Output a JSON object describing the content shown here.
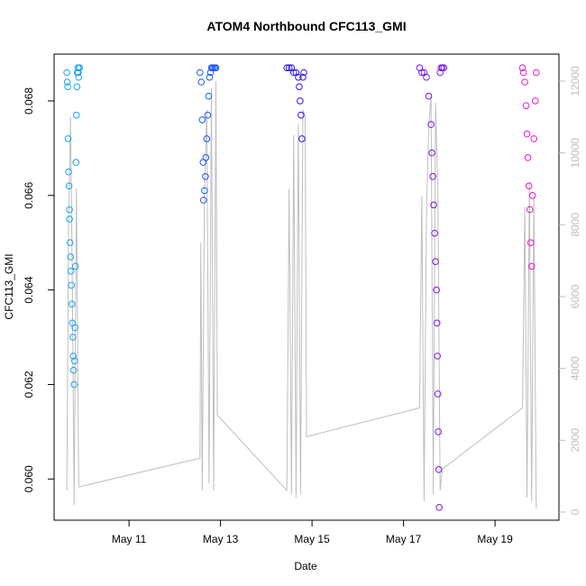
{
  "chart_data": {
    "type": "scatter",
    "title": "ATOM4 Northbound CFC113_GMI",
    "xlabel": "Date",
    "ylabel": "CFC113_GMI",
    "x_ticks": [
      "May 11",
      "May 13",
      "May 15",
      "May 17",
      "May 19"
    ],
    "y_ticks": [
      "0.060",
      "0.062",
      "0.064",
      "0.066",
      "0.068"
    ],
    "y2_ticks": [
      "0",
      "2000",
      "4000",
      "6000",
      "8000",
      "10000",
      "12000"
    ],
    "xlim_days": [
      9.5,
      20.2
    ],
    "ylim": [
      0.0593,
      0.0688
    ],
    "y2lim": [
      0,
      12500
    ],
    "colors": {
      "altitude_trace": "#bebebe",
      "flight_1": "#1aa3ef",
      "flight_2": "#1a58ef",
      "flight_3": "#2a17e6",
      "flight_4": "#7a17e6",
      "flight_5": "#ee17c4"
    },
    "series": [
      {
        "color": "#1aa3ef",
        "x": [
          9.64,
          9.65,
          9.66,
          9.67,
          9.68,
          9.69,
          9.7,
          9.7,
          9.71,
          9.72,
          9.73,
          9.74,
          9.75,
          9.76,
          9.77,
          9.78,
          9.79,
          9.8,
          9.81,
          9.82,
          9.83,
          9.84,
          9.85,
          9.86,
          9.87,
          9.88,
          9.89,
          9.9,
          9.91,
          9.92
        ],
        "y": [
          0.0686,
          0.0684,
          0.0683,
          0.0672,
          0.0665,
          0.0662,
          0.0657,
          0.0655,
          0.065,
          0.0647,
          0.0644,
          0.0641,
          0.0637,
          0.0633,
          0.063,
          0.0626,
          0.0623,
          0.062,
          0.0625,
          0.0632,
          0.0645,
          0.0667,
          0.0677,
          0.0683,
          0.0686,
          0.0687,
          0.0686,
          0.0685,
          0.0687,
          0.0687
        ]
      },
      {
        "color": "#1a58ef",
        "x": [
          12.55,
          12.58,
          12.6,
          12.62,
          12.63,
          12.65,
          12.67,
          12.68,
          12.7,
          12.72,
          12.74,
          12.76,
          12.78,
          12.8,
          12.82,
          12.85,
          12.88,
          12.9
        ],
        "y": [
          0.0686,
          0.0684,
          0.0676,
          0.0667,
          0.0659,
          0.0661,
          0.0664,
          0.0668,
          0.0672,
          0.0677,
          0.0681,
          0.0685,
          0.0686,
          0.0687,
          0.0687,
          0.0687,
          0.0687,
          0.0687
        ]
      },
      {
        "color": "#2a17e6",
        "x": [
          14.45,
          14.5,
          14.55,
          14.6,
          14.65,
          14.7,
          14.72,
          14.74,
          14.76,
          14.78,
          14.8,
          14.82
        ],
        "y": [
          0.0687,
          0.0687,
          0.0687,
          0.0686,
          0.0686,
          0.0685,
          0.0683,
          0.068,
          0.0677,
          0.0672,
          0.0685,
          0.0686
        ]
      },
      {
        "color": "#7a17e6",
        "x": [
          17.35,
          17.4,
          17.45,
          17.5,
          17.55,
          17.6,
          17.62,
          17.64,
          17.66,
          17.68,
          17.7,
          17.72,
          17.73,
          17.74,
          17.75,
          17.76,
          17.77,
          17.78,
          17.8,
          17.82,
          17.85,
          17.88
        ],
        "y": [
          0.0687,
          0.0686,
          0.0686,
          0.0685,
          0.0681,
          0.0675,
          0.0669,
          0.0664,
          0.0658,
          0.0652,
          0.0646,
          0.064,
          0.0633,
          0.0626,
          0.0618,
          0.061,
          0.0602,
          0.0594,
          0.0686,
          0.0687,
          0.0687,
          0.0687
        ]
      },
      {
        "color": "#ee17c4",
        "x": [
          19.6,
          19.62,
          19.65,
          19.68,
          19.7,
          19.72,
          19.74,
          19.76,
          19.78,
          19.8,
          19.82,
          19.85,
          19.88,
          19.9
        ],
        "y": [
          0.0687,
          0.0686,
          0.0684,
          0.0679,
          0.0673,
          0.0668,
          0.0662,
          0.0657,
          0.065,
          0.0645,
          0.066,
          0.0672,
          0.068,
          0.0686
        ]
      }
    ],
    "altitude_trace": {
      "x": [
        9.64,
        9.68,
        9.72,
        9.76,
        9.8,
        9.85,
        9.9,
        12.55,
        12.57,
        12.6,
        12.65,
        12.7,
        12.75,
        12.8,
        12.85,
        12.9,
        12.93,
        14.45,
        14.5,
        14.55,
        14.6,
        14.65,
        14.7,
        14.75,
        14.8,
        14.85,
        14.88,
        17.35,
        17.4,
        17.45,
        17.5,
        17.55,
        17.6,
        17.65,
        17.7,
        17.75,
        17.8,
        17.85,
        19.6,
        19.65,
        19.7,
        19.75,
        19.8,
        19.85,
        19.9
      ],
      "y": [
        600,
        8000,
        11000,
        6500,
        200,
        9000,
        700,
        1500,
        7500,
        600,
        9000,
        11200,
        800,
        11800,
        600,
        12000,
        2700,
        600,
        9000,
        500,
        10500,
        400,
        10800,
        500,
        11200,
        11000,
        2100,
        2900,
        8800,
        300,
        8200,
        10700,
        11600,
        500,
        11400,
        9000,
        600,
        1200,
        2900,
        8500,
        400,
        9200,
        300,
        8800,
        100
      ]
    }
  }
}
